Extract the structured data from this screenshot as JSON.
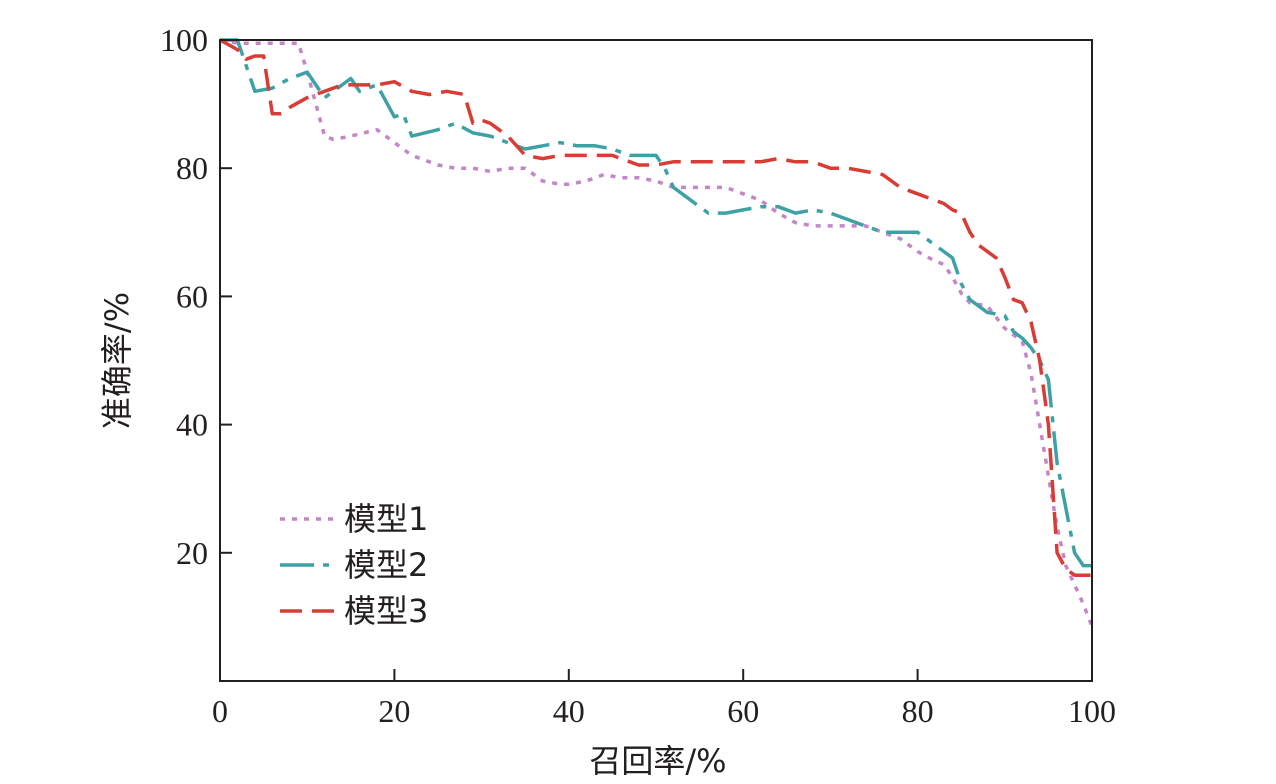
{
  "chart_data": {
    "type": "line",
    "title": "",
    "xlabel": "召回率/%",
    "ylabel": "准确率/%",
    "xlim": [
      0,
      100
    ],
    "ylim": [
      0,
      100
    ],
    "xticks": [
      0,
      20,
      40,
      60,
      80,
      100
    ],
    "yticks": [
      20,
      40,
      60,
      80,
      100
    ],
    "grid": false,
    "legend_position": "bottom-left",
    "series": [
      {
        "name": "模型1",
        "color": "#c486c6",
        "dash": "dotted",
        "x": [
          0,
          2,
          4,
          6,
          8,
          9,
          10,
          11,
          12,
          13,
          15,
          18,
          20,
          22,
          25,
          27,
          29,
          31,
          33,
          35,
          37,
          39,
          40,
          42,
          44,
          46,
          48,
          50,
          52,
          54,
          56,
          58,
          60,
          62,
          64,
          66,
          68,
          70,
          72,
          74,
          76,
          78,
          80,
          82,
          83,
          84,
          85,
          86,
          88,
          90,
          91,
          92,
          93,
          94,
          95,
          96,
          97,
          98,
          99,
          100
        ],
        "y": [
          100,
          99.5,
          99.5,
          99.5,
          99.5,
          99.5,
          95,
          90,
          85,
          84.5,
          85,
          86,
          84,
          82,
          80.5,
          80,
          80,
          79.5,
          80,
          80,
          78,
          77.5,
          77.5,
          78,
          79,
          78.5,
          78.5,
          78,
          77,
          77,
          77,
          77,
          76,
          75,
          73,
          71.5,
          71,
          71,
          71,
          71,
          70,
          69,
          67,
          65.5,
          65,
          63,
          60.5,
          59,
          58.5,
          55,
          54,
          53,
          48,
          40,
          32,
          24,
          18,
          15,
          12,
          8.5
        ]
      },
      {
        "name": "模型2",
        "color": "#3ea1a5",
        "dash": "dashdot",
        "x": [
          0,
          2,
          4,
          6,
          8,
          10,
          12,
          14,
          15,
          16,
          18,
          20,
          21,
          22,
          25,
          27,
          29,
          31,
          33,
          35,
          37,
          39,
          41,
          43,
          45,
          47,
          49,
          50,
          51,
          52,
          54,
          56,
          58,
          60,
          62,
          64,
          66,
          68,
          70,
          72,
          74,
          76,
          78,
          80,
          82,
          83,
          84,
          85,
          86,
          88,
          90,
          91,
          92,
          93,
          94,
          95,
          96,
          97,
          98,
          99,
          100
        ],
        "y": [
          100,
          100,
          92,
          92.5,
          94,
          95,
          91,
          93,
          94,
          92,
          93,
          88,
          88.5,
          85,
          86,
          87,
          85.5,
          85,
          84,
          83,
          83.5,
          84,
          83.5,
          83.5,
          83,
          82,
          82,
          82,
          80,
          77,
          75,
          73,
          73,
          73.5,
          74,
          74,
          73,
          73.5,
          73,
          72,
          71,
          70,
          70,
          70,
          68,
          67,
          66,
          62,
          59.5,
          57.5,
          57,
          54.5,
          53.5,
          52,
          50,
          47,
          34,
          27,
          20,
          18,
          18
        ]
      },
      {
        "name": "模型3",
        "color": "#d93b35",
        "dash": "dashed",
        "x": [
          0,
          2,
          3,
          4,
          5,
          6,
          7,
          8,
          10,
          12,
          14,
          16,
          18,
          20,
          22,
          24,
          26,
          28,
          29,
          30,
          31,
          33,
          35,
          37,
          39,
          41,
          43,
          45,
          47,
          48,
          50,
          52,
          54,
          56,
          58,
          60,
          62,
          64,
          66,
          68,
          70,
          72,
          74,
          76,
          78,
          80,
          82,
          83,
          84,
          85,
          86,
          87,
          88,
          89,
          90,
          91,
          92,
          93,
          94,
          95,
          96,
          97,
          98,
          99,
          100
        ],
        "y": [
          100,
          98.5,
          97,
          97.5,
          97.5,
          88.5,
          88.5,
          89.5,
          91,
          92,
          93,
          93,
          93,
          93.5,
          92,
          91.5,
          92,
          91.5,
          87,
          87.5,
          87,
          85,
          82,
          81.5,
          82,
          82,
          82,
          82,
          81,
          80.5,
          80.5,
          81,
          81,
          81,
          81,
          81,
          81,
          81.5,
          81,
          81,
          80,
          80,
          79.5,
          79,
          77,
          76,
          75,
          74.5,
          73.5,
          73,
          70,
          68,
          67,
          66,
          63,
          59.5,
          59,
          56,
          50,
          40,
          20,
          17.5,
          16.5,
          16.5,
          16.5
        ]
      }
    ]
  }
}
